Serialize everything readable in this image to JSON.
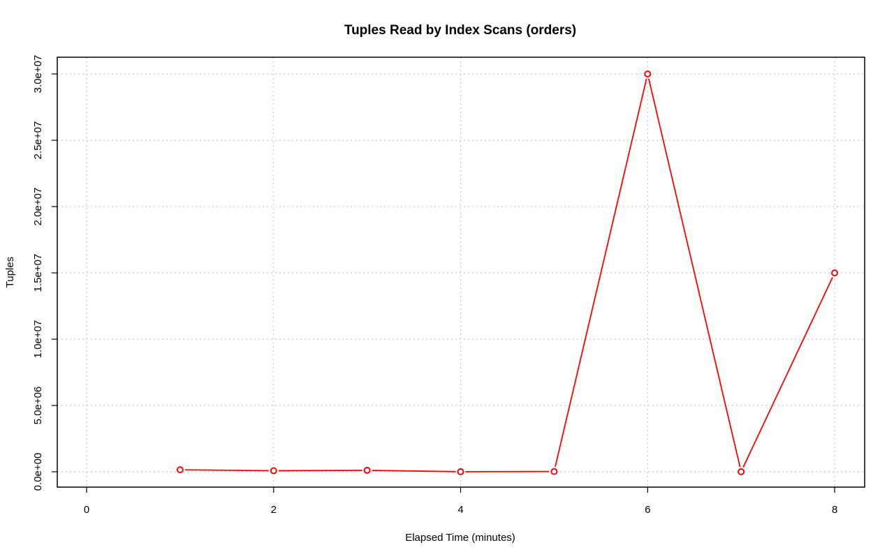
{
  "chart_data": {
    "type": "line",
    "title": "Tuples Read by Index Scans (orders)",
    "xlabel": "Elapsed Time (minutes)",
    "ylabel": "Tuples",
    "xlim": [
      0,
      8
    ],
    "ylim": [
      0,
      30000000
    ],
    "x_ticks": [
      0,
      2,
      4,
      6,
      8
    ],
    "x_tick_labels": [
      "0",
      "2",
      "4",
      "6",
      "8"
    ],
    "y_ticks": [
      0,
      5000000,
      10000000,
      15000000,
      20000000,
      25000000,
      30000000
    ],
    "y_tick_labels": [
      "0.0e+00",
      "5.0e+06",
      "1.0e+07",
      "1.5e+07",
      "2.0e+07",
      "2.5e+07",
      "3.0e+07"
    ],
    "grid": true,
    "series": [
      {
        "color": "#ff0000",
        "x": [
          1,
          2,
          3,
          4,
          5,
          6,
          7,
          8
        ],
        "y": [
          150000,
          80000,
          110000,
          5000,
          20000,
          30000000,
          5000,
          15000000
        ]
      }
    ]
  }
}
